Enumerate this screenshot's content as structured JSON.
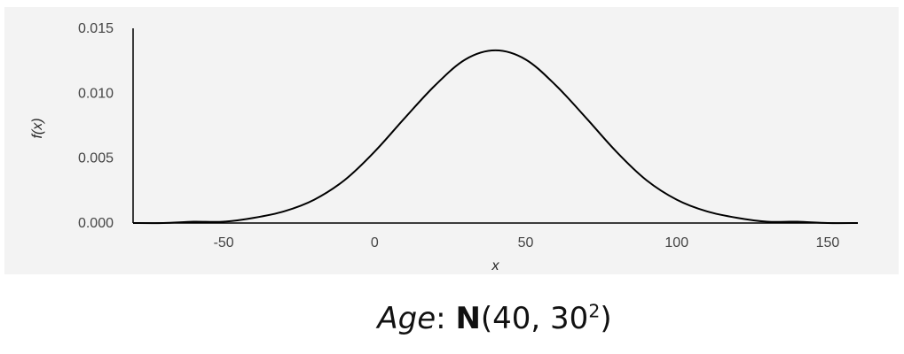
{
  "chart_data": {
    "type": "line",
    "xlabel": "x",
    "ylabel": "f(x)",
    "xlim": [
      -80,
      160
    ],
    "ylim": [
      0,
      0.015
    ],
    "x_ticks": [
      -50,
      0,
      50,
      100,
      150
    ],
    "x_tick_labels": [
      "-50",
      "0",
      "50",
      "100",
      "150"
    ],
    "y_ticks": [
      0,
      0.005,
      0.01,
      0.015
    ],
    "y_tick_labels": [
      "0.000",
      "0.005",
      "0.010",
      "0.015"
    ],
    "grid": false,
    "series": [
      {
        "x": [
          -80,
          -70,
          -60,
          -50,
          -40,
          -30,
          -20,
          -10,
          0,
          10,
          20,
          30,
          40,
          50,
          60,
          70,
          80,
          90,
          100,
          110,
          120,
          130,
          140,
          150,
          160
        ],
        "values": [
          0.0,
          0.0,
          0.0001,
          0.0001,
          0.0004,
          0.0009,
          0.0018,
          0.0033,
          0.0055,
          0.0081,
          0.0106,
          0.0126,
          0.0133,
          0.0126,
          0.0106,
          0.0081,
          0.0055,
          0.0033,
          0.0018,
          0.0009,
          0.0004,
          0.0001,
          0.0001,
          0.0,
          0.0
        ],
        "color": "#000000"
      }
    ]
  },
  "caption": {
    "variable": "Age",
    "separator": ": ",
    "distribution": "N",
    "params_open": "(40, 30",
    "exponent": "2",
    "params_close": ")"
  }
}
